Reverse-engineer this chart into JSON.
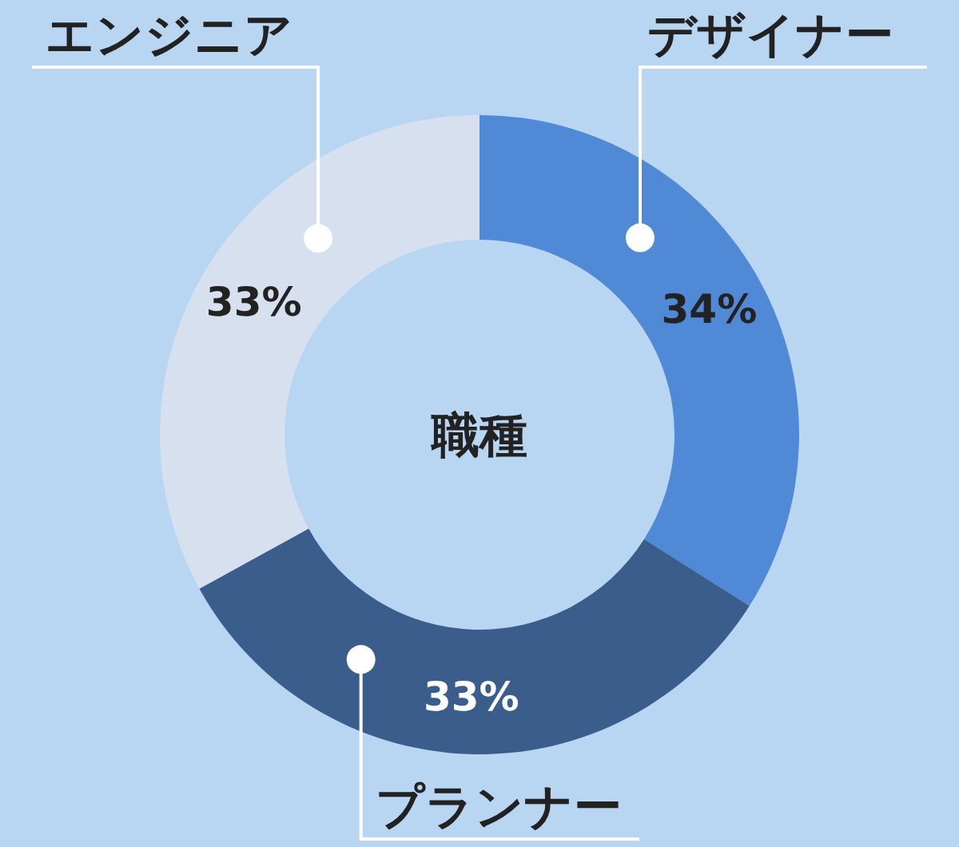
{
  "chart_data": {
    "type": "donut",
    "title": "職種",
    "categories": [
      "デザイナー",
      "プランナー",
      "エンジニア"
    ],
    "values": [
      34,
      33,
      33
    ],
    "colors": [
      "#5089d6",
      "#3a5d8c",
      "#d6e0ee"
    ],
    "value_labels": [
      "34%",
      "33%",
      "33%"
    ],
    "legend": false
  }
}
